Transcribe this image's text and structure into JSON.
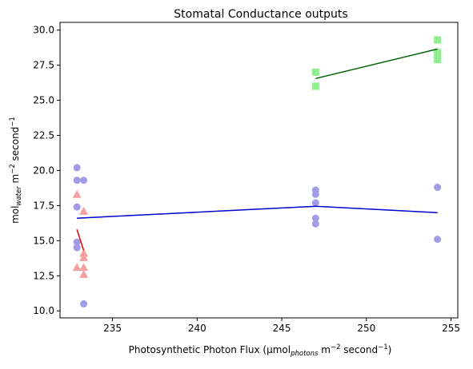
{
  "chart_data": {
    "type": "scatter",
    "title": "Stomatal Conductance outputs",
    "xlabel": {
      "pre": "Photosynthetic Photon Flux (μmol",
      "sub": "photons",
      "post": " m",
      "sup1": "−2",
      "mid": " second",
      "sup2": "−1",
      "close": ")"
    },
    "ylabel": {
      "pre": "mol",
      "sub": "water",
      "post": " m",
      "sup1": "−2",
      "mid": " second",
      "sup2": "−1"
    },
    "xlim": [
      231.9,
      255.4
    ],
    "ylim": [
      9.5,
      30.55
    ],
    "xticks": [
      {
        "v": 235,
        "label": "235"
      },
      {
        "v": 240,
        "label": "240"
      },
      {
        "v": 245,
        "label": "245"
      },
      {
        "v": 250,
        "label": "250"
      },
      {
        "v": 255,
        "label": "255"
      }
    ],
    "yticks": [
      {
        "v": 10.0,
        "label": "10.0"
      },
      {
        "v": 12.5,
        "label": "12.5"
      },
      {
        "v": 15.0,
        "label": "15.0"
      },
      {
        "v": 17.5,
        "label": "17.5"
      },
      {
        "v": 20.0,
        "label": "20.0"
      },
      {
        "v": 22.5,
        "label": "22.5"
      },
      {
        "v": 25.0,
        "label": "25.0"
      },
      {
        "v": 27.5,
        "label": "27.5"
      },
      {
        "v": 30.0,
        "label": "30.0"
      }
    ],
    "grid": false,
    "series": [
      {
        "marker": "circle",
        "color": "#a29be6",
        "line_color": "#0000cc",
        "points": [
          [
            232.9,
            20.2
          ],
          [
            232.9,
            19.3
          ],
          [
            232.9,
            17.4
          ],
          [
            232.9,
            14.9
          ],
          [
            232.9,
            14.5
          ],
          [
            233.3,
            19.3
          ],
          [
            233.3,
            10.5
          ],
          [
            247.0,
            18.6
          ],
          [
            247.0,
            18.3
          ],
          [
            247.0,
            17.7
          ],
          [
            247.0,
            16.6
          ],
          [
            247.0,
            16.2
          ],
          [
            254.2,
            18.8
          ],
          [
            254.2,
            15.1
          ]
        ],
        "fit": [
          [
            232.9,
            16.6
          ],
          [
            247.0,
            17.45
          ],
          [
            254.2,
            17.0
          ]
        ]
      },
      {
        "marker": "triangle",
        "color": "#f4a0a0",
        "line_color": "#ee0000",
        "points": [
          [
            232.9,
            18.3
          ],
          [
            233.3,
            17.1
          ],
          [
            233.3,
            14.1
          ],
          [
            233.3,
            13.8
          ],
          [
            232.9,
            13.1
          ],
          [
            233.3,
            13.1
          ],
          [
            233.3,
            12.6
          ]
        ],
        "fit": [
          [
            232.9,
            15.8
          ],
          [
            233.3,
            14.3
          ]
        ]
      },
      {
        "marker": "square",
        "color": "#90ee90",
        "line_color": "#006400",
        "points": [
          [
            247.0,
            27.0
          ],
          [
            247.0,
            26.0
          ],
          [
            254.2,
            29.3
          ],
          [
            254.2,
            28.4
          ],
          [
            254.2,
            27.9
          ]
        ],
        "fit": [
          [
            247.0,
            26.55
          ],
          [
            254.2,
            28.65
          ]
        ]
      }
    ]
  }
}
